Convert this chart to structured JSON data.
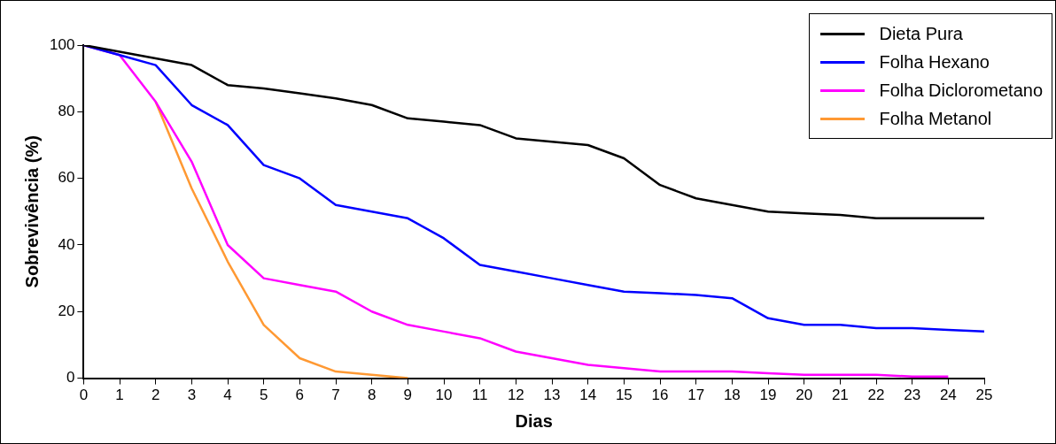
{
  "chart_data": {
    "type": "line",
    "xlabel": "Dias",
    "ylabel": "Sobrevivência (%)",
    "x": [
      0,
      1,
      2,
      3,
      4,
      5,
      6,
      7,
      8,
      9,
      10,
      11,
      12,
      13,
      14,
      15,
      16,
      17,
      18,
      19,
      20,
      21,
      22,
      23,
      24,
      25
    ],
    "series": [
      {
        "name": "Dieta Pura",
        "color": "#000000",
        "values": [
          100,
          98,
          96,
          94,
          88,
          87,
          85.5,
          84,
          82,
          78,
          77,
          76,
          72,
          71,
          70,
          66,
          58,
          54,
          52,
          50,
          49.5,
          49,
          48,
          48,
          48,
          48
        ]
      },
      {
        "name": "Folha Hexano",
        "color": "#0000ff",
        "values": [
          100,
          97,
          94,
          82,
          76,
          64,
          60,
          52,
          50,
          48,
          42,
          34,
          32,
          30,
          28,
          26,
          25.5,
          25,
          24,
          18,
          16,
          16,
          15,
          15,
          14.5,
          14
        ]
      },
      {
        "name": "Folha Diclorometano",
        "color": "#ff00ff",
        "values": [
          100,
          97,
          83,
          65,
          40,
          30,
          28,
          26,
          20,
          16,
          14,
          12,
          8,
          6,
          4,
          3,
          2,
          2,
          2,
          1.5,
          1,
          1,
          1,
          0.5,
          0.5,
          null
        ]
      },
      {
        "name": "Folha Metanol",
        "color": "#ff9933",
        "values": [
          null,
          null,
          83,
          57,
          35,
          16,
          6,
          2,
          1,
          0,
          null,
          null,
          null,
          null,
          null,
          null,
          null,
          null,
          null,
          null,
          null,
          null,
          null,
          null,
          null,
          null
        ]
      }
    ],
    "xlim": [
      0,
      25
    ],
    "xticks": [
      0,
      1,
      2,
      3,
      4,
      5,
      6,
      7,
      8,
      9,
      10,
      11,
      12,
      13,
      14,
      15,
      16,
      17,
      18,
      19,
      20,
      21,
      22,
      23,
      24,
      25
    ],
    "ylim": [
      0,
      100
    ],
    "yticks": [
      0,
      20,
      40,
      60,
      80,
      100
    ],
    "grid": false,
    "legend": "top right",
    "marker": "none",
    "line_style": "solid"
  }
}
